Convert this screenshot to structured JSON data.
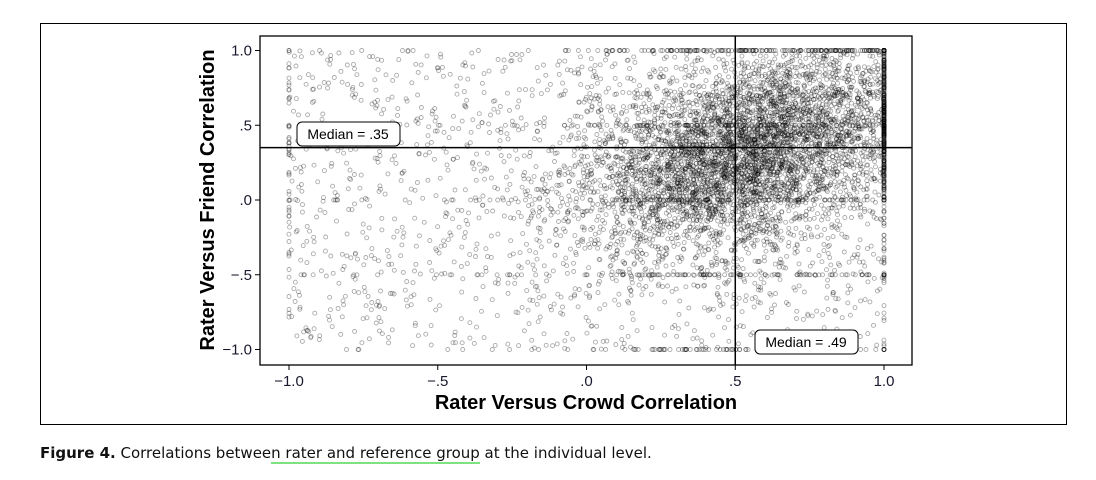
{
  "chart_data": {
    "type": "scatter",
    "xlabel": "Rater Versus Crowd Correlation",
    "ylabel": "Rater Versus Friend Correlation",
    "xlim": [
      -1.1,
      1.0
    ],
    "ylim": [
      -1.1,
      1.1
    ],
    "xticks": [
      -1.0,
      -0.5,
      0.0,
      0.5,
      1.0
    ],
    "xtick_labels": [
      "−1.0",
      "−.5",
      ".0",
      ".5",
      "1.0"
    ],
    "yticks": [
      1.0,
      0.5,
      0.0,
      -0.5,
      -1.0
    ],
    "ytick_labels": [
      "1.0",
      ".5",
      ".0",
      "−.5",
      "−1.0"
    ],
    "grid": false,
    "n_points": 7000,
    "cluster_center": [
      0.55,
      0.3
    ],
    "median_x": 0.49,
    "median_y": 0.35,
    "annotations": [
      "Median = .35",
      "Median = .49"
    ]
  },
  "caption": {
    "label": "Figure 4.",
    "text_before": " Correlations betwee",
    "text_underlined": "n rater and reference group",
    "text_after": " at the individual level."
  }
}
